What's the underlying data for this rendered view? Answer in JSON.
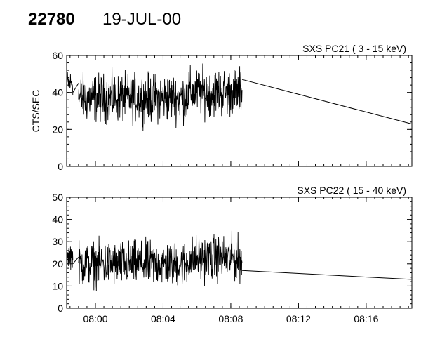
{
  "header": {
    "id": "22780",
    "date": "19-JUL-00"
  },
  "chart_data": [
    {
      "type": "line",
      "title": "SXS PC21  (  3 - 15 keV)",
      "ylabel": "CTS/SEC",
      "xlabel": "",
      "ylim": [
        0,
        60
      ],
      "yticks": [
        0,
        20,
        40,
        60
      ],
      "xlim_minutes": [
        478.3,
        498.7
      ],
      "xticks": [
        {
          "minutes": 480,
          "label": "08:00"
        },
        {
          "minutes": 484,
          "label": "08:04"
        },
        {
          "minutes": 488,
          "label": "08:08"
        },
        {
          "minutes": 492,
          "label": "08:12"
        },
        {
          "minutes": 496,
          "label": "08:16"
        }
      ],
      "show_tick_labels": false,
      "grid": false,
      "series": [
        {
          "noisy_segments": [
            {
              "start": "07:58:20",
              "end": "07:58:40",
              "mean": 45,
              "amplitude": 5
            },
            {
              "start": "07:59:00",
              "end": "08:08:40",
              "mean": 37,
              "amplitude": 9
            }
          ],
          "gap_line": [
            {
              "x": "07:58:40",
              "y": 40
            },
            {
              "x": "07:59:00",
              "y": 45
            }
          ],
          "trend_line": [
            {
              "x": "08:08:40",
              "y": 47
            },
            {
              "x": "08:18:40",
              "y": 23
            }
          ]
        }
      ]
    },
    {
      "type": "line",
      "title": "SXS PC22  ( 15 - 40 keV)",
      "ylabel": "",
      "xlabel": "",
      "ylim": [
        0,
        50
      ],
      "yticks": [
        0,
        10,
        20,
        30,
        40,
        50
      ],
      "xlim_minutes": [
        478.3,
        498.7
      ],
      "xticks": [
        {
          "minutes": 480,
          "label": "08:00"
        },
        {
          "minutes": 484,
          "label": "08:04"
        },
        {
          "minutes": 488,
          "label": "08:08"
        },
        {
          "minutes": 492,
          "label": "08:12"
        },
        {
          "minutes": 496,
          "label": "08:16"
        }
      ],
      "show_tick_labels": true,
      "grid": false,
      "series": [
        {
          "noisy_segments": [
            {
              "start": "07:58:20",
              "end": "07:58:40",
              "mean": 24,
              "amplitude": 4
            },
            {
              "start": "07:59:00",
              "end": "08:08:40",
              "mean": 20,
              "amplitude": 7
            }
          ],
          "gap_line": [
            {
              "x": "07:58:40",
              "y": 20
            },
            {
              "x": "07:59:00",
              "y": 23
            }
          ],
          "trend_line": [
            {
              "x": "08:08:40",
              "y": 17
            },
            {
              "x": "08:18:40",
              "y": 13
            }
          ]
        }
      ]
    }
  ]
}
